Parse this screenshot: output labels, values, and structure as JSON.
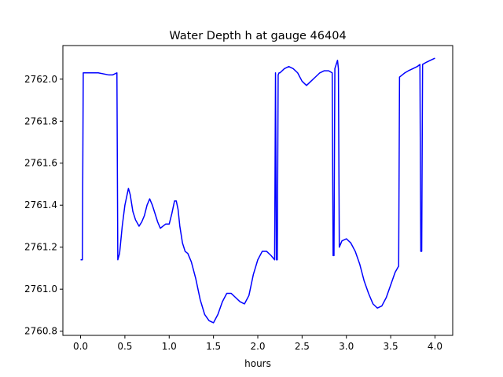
{
  "chart_data": {
    "type": "line",
    "title": "Water Depth h at gauge 46404",
    "xlabel": "hours",
    "ylabel": "",
    "xlim": [
      -0.2,
      4.2
    ],
    "ylim": [
      2760.78,
      2762.16
    ],
    "xticks": [
      0.0,
      0.5,
      1.0,
      1.5,
      2.0,
      2.5,
      3.0,
      3.5,
      4.0
    ],
    "xtick_labels": [
      "0.0",
      "0.5",
      "1.0",
      "1.5",
      "2.0",
      "2.5",
      "3.0",
      "3.5",
      "4.0"
    ],
    "yticks": [
      2760.8,
      2761.0,
      2761.2,
      2761.4,
      2761.6,
      2761.8,
      2762.0
    ],
    "ytick_labels": [
      "2760.8",
      "2761.0",
      "2761.2",
      "2761.4",
      "2761.6",
      "2761.8",
      "2762.0"
    ],
    "grid": false,
    "series": [
      {
        "name": "",
        "color": "#0000ff",
        "x": [
          0.0,
          0.02,
          0.03,
          0.2,
          0.32,
          0.36,
          0.41,
          0.42,
          0.44,
          0.47,
          0.5,
          0.54,
          0.56,
          0.59,
          0.62,
          0.66,
          0.69,
          0.72,
          0.75,
          0.78,
          0.81,
          0.84,
          0.87,
          0.9,
          0.93,
          0.96,
          1.0,
          1.03,
          1.06,
          1.08,
          1.1,
          1.12,
          1.15,
          1.18,
          1.21,
          1.25,
          1.3,
          1.35,
          1.4,
          1.45,
          1.5,
          1.55,
          1.6,
          1.65,
          1.7,
          1.75,
          1.8,
          1.85,
          1.9,
          1.95,
          2.0,
          2.05,
          2.1,
          2.15,
          2.19,
          2.2,
          2.21,
          2.22,
          2.23,
          2.24,
          2.25,
          2.3,
          2.35,
          2.4,
          2.45,
          2.5,
          2.55,
          2.6,
          2.65,
          2.7,
          2.75,
          2.8,
          2.84,
          2.85,
          2.86,
          2.87,
          2.9,
          2.91,
          2.92,
          2.95,
          3.0,
          3.05,
          3.1,
          3.15,
          3.2,
          3.25,
          3.3,
          3.35,
          3.4,
          3.45,
          3.5,
          3.55,
          3.59,
          3.6,
          3.63,
          3.66,
          3.7,
          3.75,
          3.8,
          3.83,
          3.84,
          3.85,
          3.86,
          3.9,
          3.95,
          4.0
        ],
        "y": [
          2761.14,
          2761.14,
          2762.03,
          2762.03,
          2762.02,
          2762.02,
          2762.03,
          2761.14,
          2761.17,
          2761.3,
          2761.4,
          2761.48,
          2761.45,
          2761.37,
          2761.33,
          2761.3,
          2761.32,
          2761.35,
          2761.4,
          2761.43,
          2761.4,
          2761.36,
          2761.32,
          2761.29,
          2761.3,
          2761.31,
          2761.31,
          2761.36,
          2761.42,
          2761.42,
          2761.38,
          2761.3,
          2761.22,
          2761.18,
          2761.17,
          2761.13,
          2761.05,
          2760.95,
          2760.88,
          2760.85,
          2760.84,
          2760.88,
          2760.94,
          2760.98,
          2760.98,
          2760.96,
          2760.94,
          2760.93,
          2760.97,
          2761.07,
          2761.14,
          2761.18,
          2761.18,
          2761.16,
          2761.14,
          2762.03,
          2761.14,
          2761.14,
          2762.02,
          2762.03,
          2762.03,
          2762.05,
          2762.06,
          2762.05,
          2762.03,
          2761.99,
          2761.97,
          2761.99,
          2762.01,
          2762.03,
          2762.04,
          2762.04,
          2762.03,
          2761.16,
          2761.16,
          2762.05,
          2762.09,
          2762.05,
          2761.2,
          2761.23,
          2761.24,
          2761.22,
          2761.18,
          2761.12,
          2761.04,
          2760.98,
          2760.93,
          2760.91,
          2760.92,
          2760.96,
          2761.02,
          2761.08,
          2761.11,
          2762.01,
          2762.02,
          2762.03,
          2762.04,
          2762.05,
          2762.06,
          2762.07,
          2761.18,
          2761.18,
          2762.07,
          2762.08,
          2762.09,
          2762.1
        ]
      }
    ]
  }
}
